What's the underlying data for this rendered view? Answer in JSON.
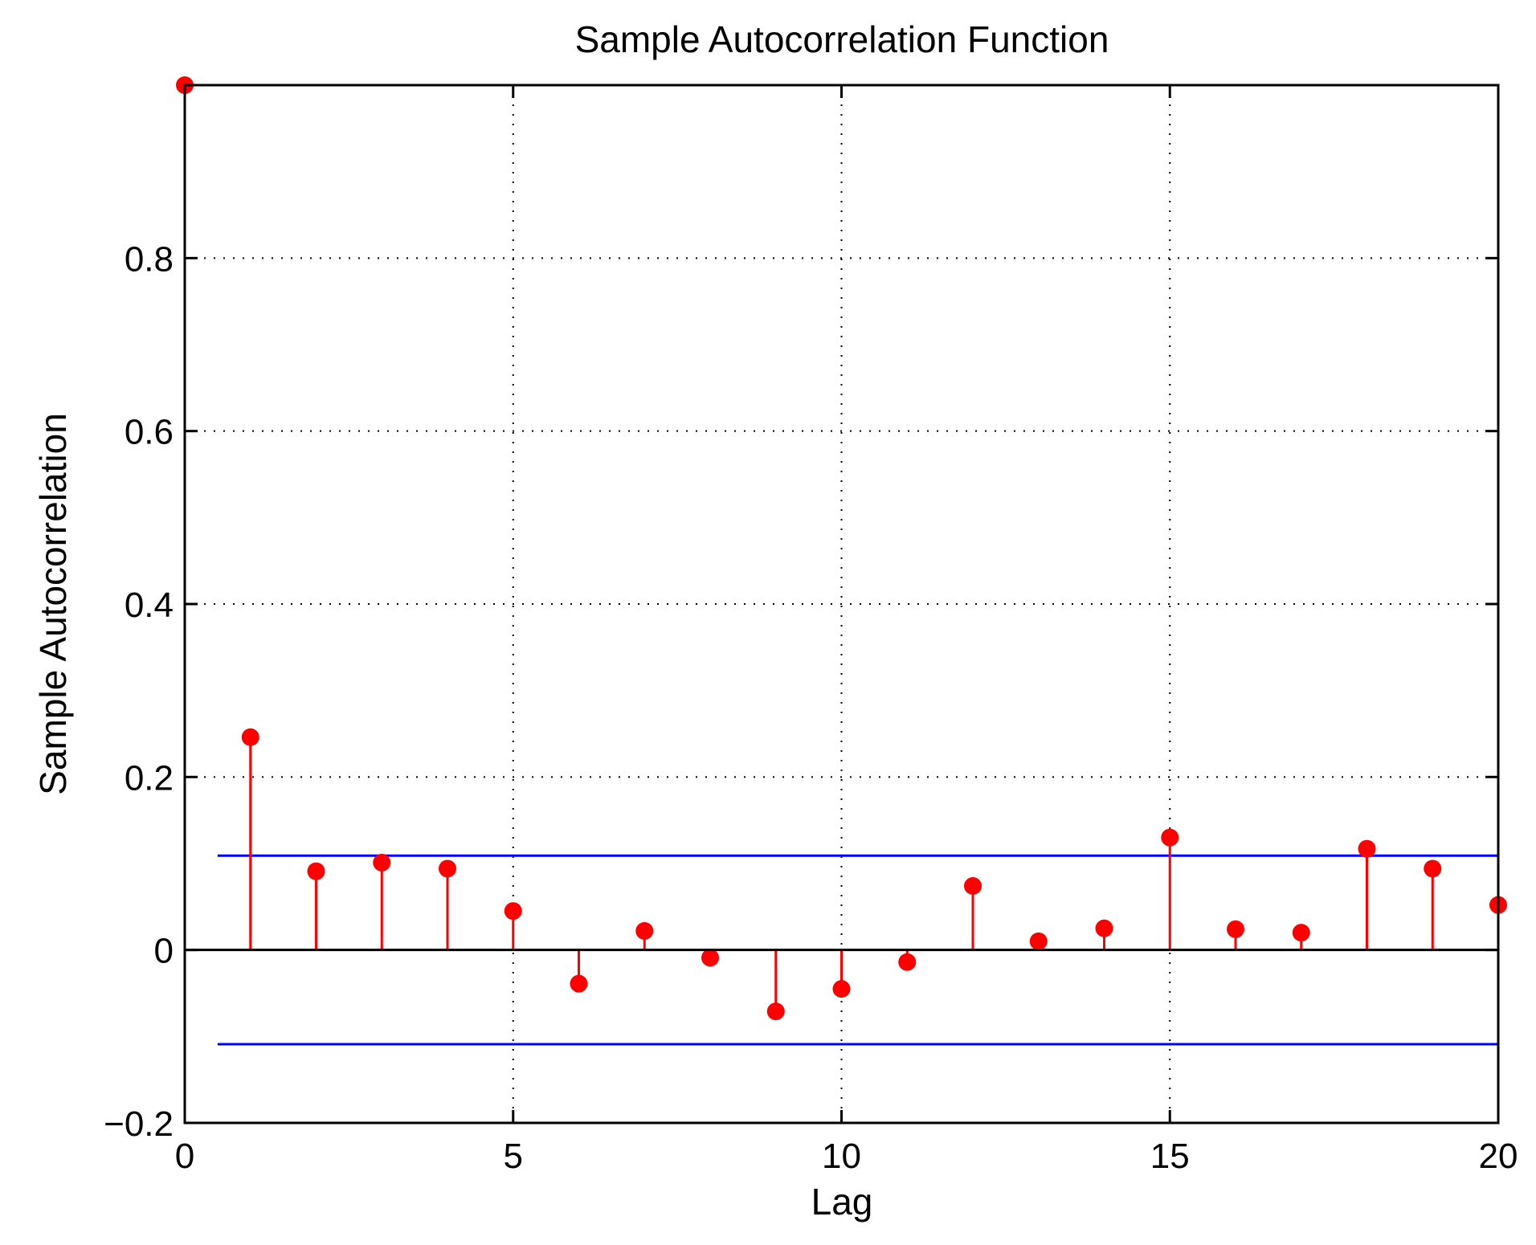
{
  "chart_data": {
    "type": "stem",
    "title": "Sample Autocorrelation Function",
    "xlabel": "Lag",
    "ylabel": "Sample Autocorrelation",
    "xlim": [
      0,
      20
    ],
    "ylim": [
      -0.2,
      1
    ],
    "x_ticks": [
      0,
      5,
      10,
      15,
      20
    ],
    "x_tick_labels": [
      "0",
      "5",
      "10",
      "15",
      "20"
    ],
    "y_ticks": [
      -0.2,
      0,
      0.2,
      0.4,
      0.6,
      0.8
    ],
    "y_tick_labels": [
      "−0.2",
      "0",
      "0.2",
      "0.4",
      "0.6",
      "0.8"
    ],
    "grid": true,
    "series": [
      {
        "lags": [
          0,
          1,
          2,
          3,
          4,
          5,
          6,
          7,
          8,
          9,
          10,
          11,
          12,
          13,
          14,
          15,
          16,
          17,
          18,
          19,
          20
        ],
        "values": [
          1.0,
          0.246,
          0.091,
          0.101,
          0.094,
          0.045,
          -0.039,
          0.022,
          -0.009,
          -0.071,
          -0.045,
          -0.014,
          0.074,
          0.01,
          0.025,
          0.13,
          0.024,
          0.02,
          0.117,
          0.094,
          0.052
        ],
        "color": "#ff0000"
      }
    ],
    "confidence_bounds": {
      "upper": 0.109,
      "lower": -0.109,
      "x_range": [
        0.5,
        20
      ],
      "color": "#0000ff"
    },
    "zero_line_color": "#000000"
  }
}
